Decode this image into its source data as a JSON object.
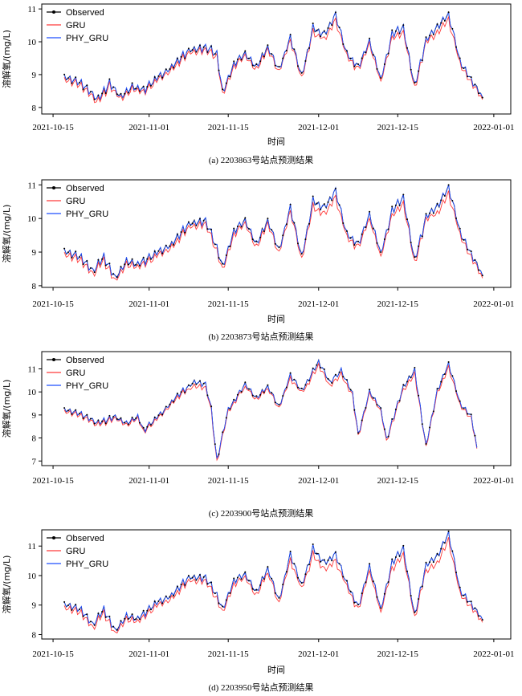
{
  "chart_data": [
    {
      "type": "line",
      "caption": "(a) 2203863号站点预测结果",
      "xlabel": "时间",
      "ylabel": "溶解氧/(mg/L)",
      "x_ticks": [
        "2021-10-15",
        "2021-11-01",
        "2021-11-15",
        "2021-12-01",
        "2021-12-15",
        "2022-01-01"
      ],
      "y_ticks": [
        8,
        9,
        10,
        11
      ],
      "ylim": [
        7.8,
        11.15
      ],
      "legend_position": "top-left",
      "series": [
        {
          "name": "Observed",
          "color": "#000000",
          "marker": "dot"
        },
        {
          "name": "GRU",
          "color": "#ff3b3b"
        },
        {
          "name": "PHY_GRU",
          "color": "#1f4fff"
        }
      ],
      "anchors": [
        [
          "2021-10-17",
          8.9
        ],
        [
          "2021-10-20",
          8.7
        ],
        [
          "2021-10-23",
          8.2
        ],
        [
          "2021-10-25",
          8.7
        ],
        [
          "2021-10-27",
          8.3
        ],
        [
          "2021-10-29",
          8.6
        ],
        [
          "2021-10-31",
          8.5
        ],
        [
          "2021-11-02",
          8.8
        ],
        [
          "2021-11-05",
          9.2
        ],
        [
          "2021-11-08",
          9.7
        ],
        [
          "2021-11-11",
          9.8
        ],
        [
          "2021-11-13",
          9.6
        ],
        [
          "2021-11-14",
          8.4
        ],
        [
          "2021-11-16",
          9.3
        ],
        [
          "2021-11-18",
          9.6
        ],
        [
          "2021-11-20",
          9.2
        ],
        [
          "2021-11-22",
          9.8
        ],
        [
          "2021-11-24",
          9.1
        ],
        [
          "2021-11-26",
          10.1
        ],
        [
          "2021-11-28",
          8.9
        ],
        [
          "2021-11-30",
          10.4
        ],
        [
          "2021-12-02",
          10.2
        ],
        [
          "2021-12-04",
          10.8
        ],
        [
          "2021-12-06",
          9.6
        ],
        [
          "2021-12-08",
          9.2
        ],
        [
          "2021-12-10",
          10.0
        ],
        [
          "2021-12-12",
          8.8
        ],
        [
          "2021-12-14",
          10.2
        ],
        [
          "2021-12-16",
          10.4
        ],
        [
          "2021-12-18",
          8.6
        ],
        [
          "2021-12-20",
          10.0
        ],
        [
          "2021-12-22",
          10.4
        ],
        [
          "2021-12-24",
          10.8
        ],
        [
          "2021-12-26",
          9.4
        ],
        [
          "2021-12-28",
          8.8
        ],
        [
          "2021-12-30",
          8.3
        ]
      ],
      "gru_bias": -0.1
    },
    {
      "type": "line",
      "caption": "(b) 2203873号站点预测结果",
      "xlabel": "时间",
      "ylabel": "溶解氧/(mg/L)",
      "x_ticks": [
        "2021-10-15",
        "2021-11-01",
        "2021-11-15",
        "2021-12-01",
        "2021-12-15",
        "2022-01-01"
      ],
      "y_ticks": [
        8,
        9,
        10,
        11
      ],
      "ylim": [
        7.95,
        11.15
      ],
      "legend_position": "top-left",
      "series": [
        {
          "name": "Observed",
          "color": "#000000",
          "marker": "dot"
        },
        {
          "name": "GRU",
          "color": "#ff3b3b"
        },
        {
          "name": "PHY_GRU",
          "color": "#1f4fff"
        }
      ],
      "anchors": [
        [
          "2021-10-17",
          9.0
        ],
        [
          "2021-10-20",
          8.8
        ],
        [
          "2021-10-22",
          8.4
        ],
        [
          "2021-10-24",
          8.8
        ],
        [
          "2021-10-26",
          8.2
        ],
        [
          "2021-10-28",
          8.7
        ],
        [
          "2021-10-30",
          8.6
        ],
        [
          "2021-11-02",
          8.9
        ],
        [
          "2021-11-05",
          9.2
        ],
        [
          "2021-11-08",
          9.8
        ],
        [
          "2021-11-11",
          9.9
        ],
        [
          "2021-11-13",
          9.1
        ],
        [
          "2021-11-14",
          8.5
        ],
        [
          "2021-11-16",
          9.6
        ],
        [
          "2021-11-18",
          9.9
        ],
        [
          "2021-11-20",
          9.2
        ],
        [
          "2021-11-22",
          9.9
        ],
        [
          "2021-11-24",
          9.0
        ],
        [
          "2021-11-26",
          10.3
        ],
        [
          "2021-11-28",
          8.8
        ],
        [
          "2021-11-30",
          10.5
        ],
        [
          "2021-12-02",
          10.3
        ],
        [
          "2021-12-04",
          10.8
        ],
        [
          "2021-12-06",
          9.5
        ],
        [
          "2021-12-08",
          9.2
        ],
        [
          "2021-12-10",
          10.1
        ],
        [
          "2021-12-12",
          8.9
        ],
        [
          "2021-12-14",
          10.2
        ],
        [
          "2021-12-16",
          10.6
        ],
        [
          "2021-12-18",
          8.7
        ],
        [
          "2021-12-20",
          10.0
        ],
        [
          "2021-12-22",
          10.3
        ],
        [
          "2021-12-24",
          10.9
        ],
        [
          "2021-12-26",
          9.6
        ],
        [
          "2021-12-28",
          8.9
        ],
        [
          "2021-12-30",
          8.3
        ]
      ],
      "gru_bias": -0.12
    },
    {
      "type": "line",
      "caption": "(c) 2203900号站点预测结果",
      "xlabel": "",
      "ylabel": "溶解氧/(mg/L)",
      "x_ticks": [
        "2021-10-15",
        "2021-11-01",
        "2021-11-15",
        "2021-12-01",
        "2021-12-15",
        "2022-01-01"
      ],
      "y_ticks": [
        7,
        8,
        9,
        10,
        11
      ],
      "ylim": [
        6.8,
        11.75
      ],
      "legend_position": "top-left",
      "series": [
        {
          "name": "Observed",
          "color": "#000000",
          "marker": "dot"
        },
        {
          "name": "GRU",
          "color": "#ff3b3b"
        },
        {
          "name": "PHY_GRU",
          "color": "#1f4fff"
        }
      ],
      "anchors": [
        [
          "2021-10-17",
          9.2
        ],
        [
          "2021-10-20",
          9.0
        ],
        [
          "2021-10-23",
          8.6
        ],
        [
          "2021-10-26",
          8.9
        ],
        [
          "2021-10-28",
          8.6
        ],
        [
          "2021-10-30",
          8.9
        ],
        [
          "2021-10-31",
          8.3
        ],
        [
          "2021-11-03",
          9.0
        ],
        [
          "2021-11-06",
          9.8
        ],
        [
          "2021-11-09",
          10.4
        ],
        [
          "2021-11-11",
          10.3
        ],
        [
          "2021-11-12",
          9.2
        ],
        [
          "2021-11-13",
          7.0
        ],
        [
          "2021-11-15",
          9.2
        ],
        [
          "2021-11-18",
          10.3
        ],
        [
          "2021-11-20",
          9.7
        ],
        [
          "2021-11-22",
          10.2
        ],
        [
          "2021-11-24",
          9.3
        ],
        [
          "2021-11-26",
          10.7
        ],
        [
          "2021-11-28",
          10.0
        ],
        [
          "2021-12-01",
          11.3
        ],
        [
          "2021-12-03",
          10.4
        ],
        [
          "2021-12-05",
          10.9
        ],
        [
          "2021-12-07",
          9.9
        ],
        [
          "2021-12-08",
          8.1
        ],
        [
          "2021-12-10",
          10.0
        ],
        [
          "2021-12-12",
          9.2
        ],
        [
          "2021-12-13",
          7.9
        ],
        [
          "2021-12-16",
          10.2
        ],
        [
          "2021-12-18",
          10.9
        ],
        [
          "2021-12-20",
          7.6
        ],
        [
          "2021-12-22",
          10.0
        ],
        [
          "2021-12-24",
          11.2
        ],
        [
          "2021-12-26",
          9.5
        ],
        [
          "2021-12-28",
          8.9
        ],
        [
          "2021-12-29",
          7.6
        ]
      ],
      "gru_bias": -0.1
    },
    {
      "type": "line",
      "caption": "(d) 2203950号站点预测结果",
      "xlabel": "时间",
      "ylabel": "溶解氧/(mg/L)",
      "x_ticks": [
        "2021-10-15",
        "2021-11-01",
        "2021-11-15",
        "2021-12-01",
        "2021-12-15",
        "2022-01-01"
      ],
      "y_ticks": [
        8,
        9,
        10,
        11
      ],
      "ylim": [
        7.85,
        11.55
      ],
      "legend_position": "top-left",
      "series": [
        {
          "name": "Observed",
          "color": "#000000",
          "marker": "dot"
        },
        {
          "name": "GRU",
          "color": "#ff3b3b"
        },
        {
          "name": "PHY_GRU",
          "color": "#1f4fff"
        }
      ],
      "anchors": [
        [
          "2021-10-17",
          9.0
        ],
        [
          "2021-10-20",
          8.8
        ],
        [
          "2021-10-22",
          8.3
        ],
        [
          "2021-10-24",
          8.8
        ],
        [
          "2021-10-26",
          8.1
        ],
        [
          "2021-10-28",
          8.6
        ],
        [
          "2021-10-30",
          8.5
        ],
        [
          "2021-11-02",
          9.0
        ],
        [
          "2021-11-05",
          9.3
        ],
        [
          "2021-11-08",
          9.9
        ],
        [
          "2021-11-11",
          9.9
        ],
        [
          "2021-11-13",
          9.3
        ],
        [
          "2021-11-14",
          8.8
        ],
        [
          "2021-11-16",
          9.8
        ],
        [
          "2021-11-18",
          10.0
        ],
        [
          "2021-11-20",
          9.4
        ],
        [
          "2021-11-22",
          10.2
        ],
        [
          "2021-11-24",
          9.1
        ],
        [
          "2021-11-26",
          10.7
        ],
        [
          "2021-11-28",
          9.6
        ],
        [
          "2021-11-30",
          10.9
        ],
        [
          "2021-12-02",
          10.4
        ],
        [
          "2021-12-04",
          10.7
        ],
        [
          "2021-12-06",
          9.7
        ],
        [
          "2021-12-08",
          8.9
        ],
        [
          "2021-12-10",
          10.3
        ],
        [
          "2021-12-12",
          8.8
        ],
        [
          "2021-12-14",
          10.4
        ],
        [
          "2021-12-16",
          10.9
        ],
        [
          "2021-12-18",
          8.6
        ],
        [
          "2021-12-20",
          10.3
        ],
        [
          "2021-12-22",
          10.6
        ],
        [
          "2021-12-24",
          11.4
        ],
        [
          "2021-12-26",
          9.5
        ],
        [
          "2021-12-28",
          9.0
        ],
        [
          "2021-12-30",
          8.5
        ]
      ],
      "gru_bias": -0.14
    }
  ]
}
